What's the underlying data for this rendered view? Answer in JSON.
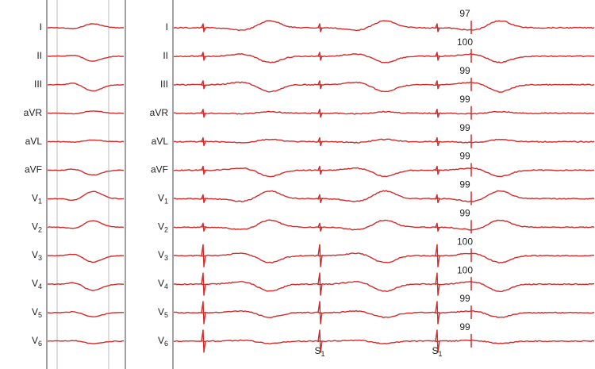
{
  "left_panel": {
    "leads": [
      "I",
      "II",
      "III",
      "aVR",
      "aVL",
      "aVF",
      {
        "label": "V",
        "subscript": "1"
      },
      {
        "label": "V",
        "subscript": "2"
      },
      {
        "label": "V",
        "subscript": "3"
      },
      {
        "label": "V",
        "subscript": "4"
      },
      {
        "label": "V",
        "subscript": "5"
      },
      {
        "label": "V",
        "subscript": "6"
      }
    ]
  },
  "right_panel": {
    "leads": [
      "I",
      "II",
      "III",
      "aVR",
      "aVL",
      "aVF",
      {
        "label": "V",
        "subscript": "1"
      },
      {
        "label": "V",
        "subscript": "2"
      },
      {
        "label": "V",
        "subscript": "3"
      },
      {
        "label": "V",
        "subscript": "4"
      },
      {
        "label": "V",
        "subscript": "5"
      },
      {
        "label": "V",
        "subscript": "6"
      }
    ],
    "scores": [
      "97",
      "100",
      "99",
      "99",
      "99",
      "99",
      "99",
      "99",
      "100",
      "100",
      "99",
      "99"
    ],
    "markers": [
      {
        "label": "S",
        "subscript": "1"
      },
      {
        "label": "S",
        "subscript": "1"
      }
    ]
  }
}
